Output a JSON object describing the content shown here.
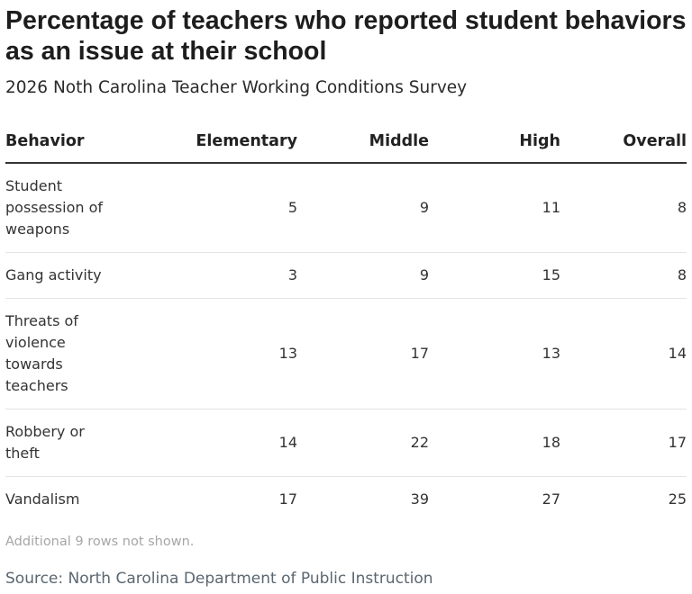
{
  "chart_data": {
    "type": "table",
    "title": "Percentage of teachers who reported student behaviors as an issue at their school",
    "subtitle": "2026 Noth Carolina Teacher Working Conditions Survey",
    "columns": [
      "Behavior",
      "Elementary",
      "Middle",
      "High",
      "Overall"
    ],
    "rows": [
      {
        "behavior": "Student possession of weapons",
        "elementary": "5",
        "middle": "9",
        "high": "11",
        "overall": "8"
      },
      {
        "behavior": "Gang activity",
        "elementary": "3",
        "middle": "9",
        "high": "15",
        "overall": "8"
      },
      {
        "behavior": "Threats of violence towards teachers",
        "elementary": "13",
        "middle": "17",
        "high": "13",
        "overall": "14"
      },
      {
        "behavior": "Robbery or theft",
        "elementary": "14",
        "middle": "22",
        "high": "18",
        "overall": "17"
      },
      {
        "behavior": "Vandalism",
        "elementary": "17",
        "middle": "39",
        "high": "27",
        "overall": "25"
      }
    ],
    "footnote": "Additional 9 rows not shown.",
    "source": "Source: North Carolina Department of Public Instruction"
  }
}
